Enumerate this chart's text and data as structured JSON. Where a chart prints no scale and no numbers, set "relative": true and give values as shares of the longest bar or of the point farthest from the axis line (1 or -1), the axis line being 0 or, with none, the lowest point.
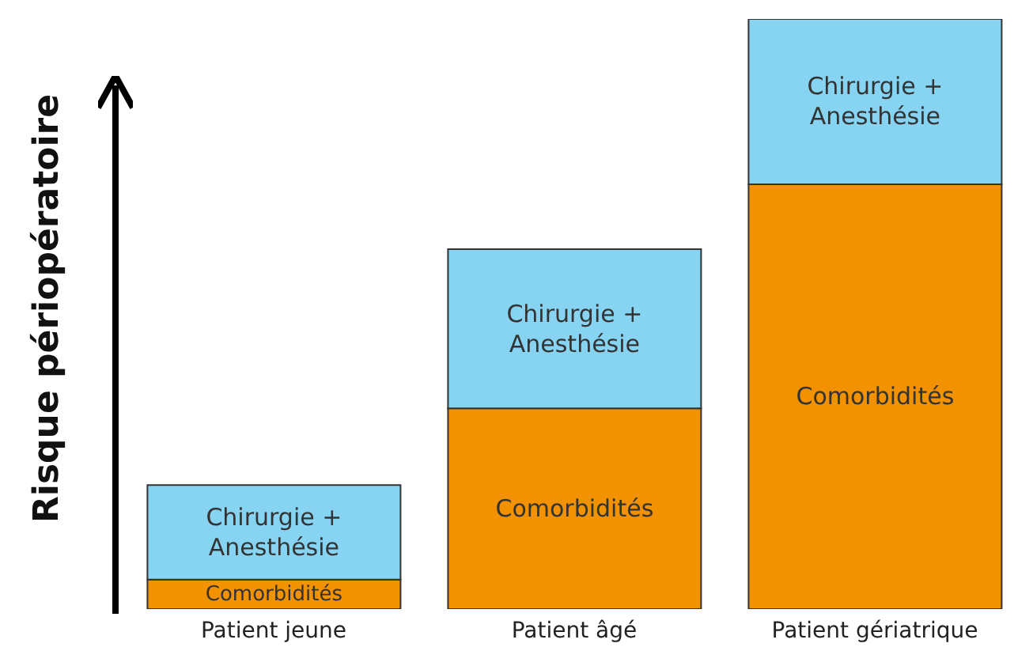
{
  "chart_data": {
    "type": "bar",
    "stacked": true,
    "relative": true,
    "ylabel": "Risque périopératoire",
    "categories": [
      "Patient jeune",
      "Patient âgé",
      "Patient gériatrique"
    ],
    "series": [
      {
        "name": "Comorbidités",
        "color": "#f39200",
        "values": [
          0.05,
          0.34,
          0.72
        ]
      },
      {
        "name": "Chirurgie + Anesthésie",
        "color": "#87d4f2",
        "values": [
          0.16,
          0.27,
          0.28
        ]
      }
    ],
    "legend": false,
    "grid": false
  }
}
